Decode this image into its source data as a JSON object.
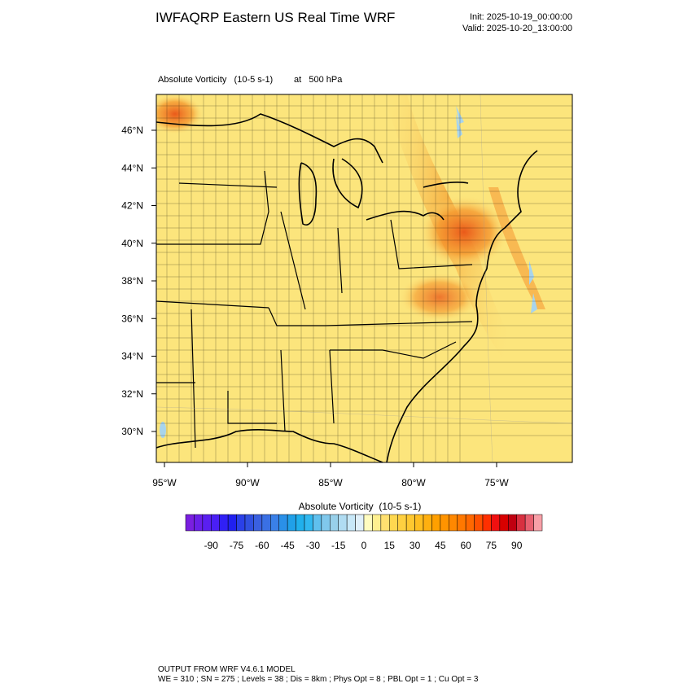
{
  "header": {
    "title": "IWFAQRP Eastern US Real Time WRF",
    "init": "Init: 2025-10-19_00:00:00",
    "valid": "Valid: 2025-10-20_13:00:00"
  },
  "plot": {
    "field": "Absolute Vorticity   (10-5 s-1)",
    "level": "at   500 hPa",
    "lat_labels": [
      "46°N",
      "44°N",
      "42°N",
      "40°N",
      "38°N",
      "36°N",
      "34°N",
      "32°N",
      "30°N"
    ],
    "lon_labels": [
      "95°W",
      "90°W",
      "85°W",
      "80°W",
      "75°W"
    ]
  },
  "colorbar": {
    "title": "Absolute Vorticity  (10-5 s-1)",
    "labels": [
      -90,
      -75,
      -60,
      -45,
      -30,
      -15,
      0,
      15,
      30,
      45,
      60,
      75,
      90
    ],
    "colors": [
      "#7a1fe0",
      "#6a1fe8",
      "#5a1ff0",
      "#4a1ff5",
      "#3020f5",
      "#2020f0",
      "#2a40e8",
      "#3050e0",
      "#3a60e0",
      "#3a70e4",
      "#3a80e8",
      "#2a90e8",
      "#20a0e8",
      "#20b0ec",
      "#30b8f0",
      "#60c0ee",
      "#80c8ec",
      "#98d0ea",
      "#b0dcf2",
      "#c8e8f8",
      "#e0f0fa",
      "#fffcc0",
      "#fff090",
      "#ffe070",
      "#ffd850",
      "#ffd040",
      "#ffc830",
      "#ffbe20",
      "#ffb010",
      "#ffa000",
      "#ff9400",
      "#ff8800",
      "#ff7800",
      "#ff6800",
      "#ff5000",
      "#ff3000",
      "#f01010",
      "#d80000",
      "#c00010",
      "#d83040",
      "#e86070",
      "#f8a0a8"
    ]
  },
  "footer": {
    "line1": "OUTPUT FROM WRF V4.6.1 MODEL",
    "line2": "WE = 310 ; SN = 275 ; Levels = 38 ; Dis = 8km ; Phys Opt = 8 ; PBL Opt = 1 ; Cu Opt = 3"
  }
}
